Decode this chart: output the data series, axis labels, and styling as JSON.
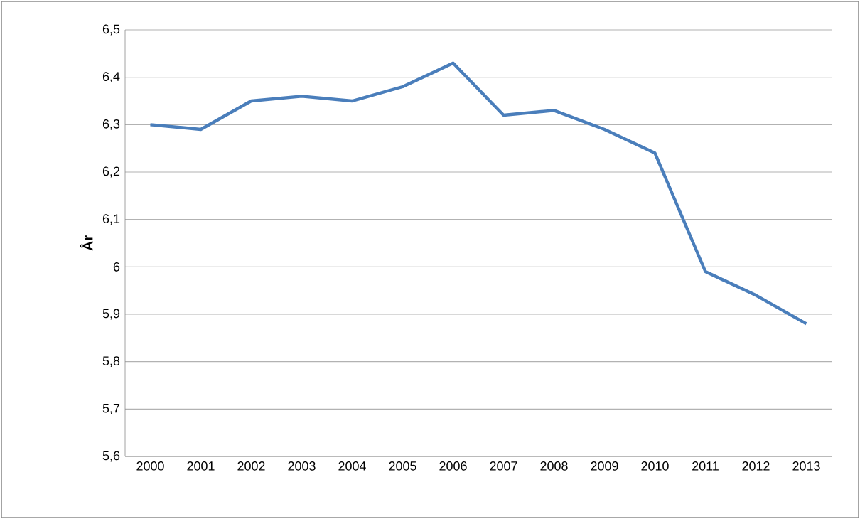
{
  "chart_data": {
    "type": "line",
    "ylabel": "År",
    "categories": [
      "2000",
      "2001",
      "2002",
      "2003",
      "2004",
      "2005",
      "2006",
      "2007",
      "2008",
      "2009",
      "2010",
      "2011",
      "2012",
      "2013"
    ],
    "series": [
      {
        "color": "#4a7ebb",
        "values": [
          6.3,
          6.29,
          6.35,
          6.36,
          6.35,
          6.38,
          6.43,
          6.32,
          6.33,
          6.29,
          6.24,
          5.99,
          5.94,
          5.88
        ]
      }
    ],
    "ylim": [
      5.6,
      6.5
    ],
    "yticks": [
      {
        "value": 5.6,
        "label": "5,6"
      },
      {
        "value": 5.7,
        "label": "5,7"
      },
      {
        "value": 5.8,
        "label": "5,8"
      },
      {
        "value": 5.9,
        "label": "5,9"
      },
      {
        "value": 6,
        "label": "6"
      },
      {
        "value": 6.1,
        "label": "6,1"
      },
      {
        "value": 6.2,
        "label": "6,2"
      },
      {
        "value": 6.3,
        "label": "6,3"
      },
      {
        "value": 6.4,
        "label": "6,4"
      },
      {
        "value": 6.5,
        "label": "6,5"
      }
    ],
    "grid": "y",
    "legend": false,
    "marker": "none",
    "line_style": "solid"
  }
}
